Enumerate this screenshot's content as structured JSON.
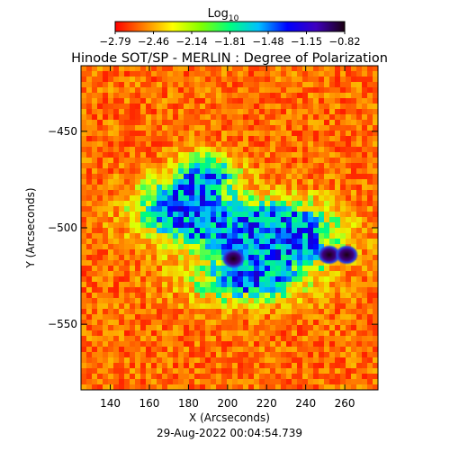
{
  "chart_data": {
    "type": "heatmap",
    "title": "Hinode SOT/SP - MERLIN : Degree of Polarization",
    "colorbar": {
      "label_base": "Log",
      "label_sub": "10",
      "ticks": [
        "-2.79",
        "-2.46",
        "-2.14",
        "-1.81",
        "-1.48",
        "-1.15",
        "-0.82"
      ],
      "range": [
        -2.79,
        -0.82
      ],
      "colormap": [
        "#ff0000",
        "#ff7f00",
        "#ffff00",
        "#7fff00",
        "#00ff7f",
        "#00bfff",
        "#0000ff",
        "#3f00bf",
        "#1a0010"
      ]
    },
    "xlabel": "X (Arcseconds)",
    "ylabel": "Y (Arcseconds)",
    "xlim": [
      125,
      277
    ],
    "ylim": [
      -584,
      -416
    ],
    "xticks": [
      140,
      160,
      180,
      200,
      220,
      240,
      260
    ],
    "yticks": [
      -450,
      -500,
      -550
    ],
    "timestamp": "29-Aug-2022 00:04:54.739",
    "features": [
      {
        "type": "sunspot",
        "x": 203,
        "y": -516
      },
      {
        "type": "sunspot",
        "x": 252,
        "y": -514
      },
      {
        "type": "sunspot",
        "x": 261,
        "y": -514
      }
    ]
  }
}
